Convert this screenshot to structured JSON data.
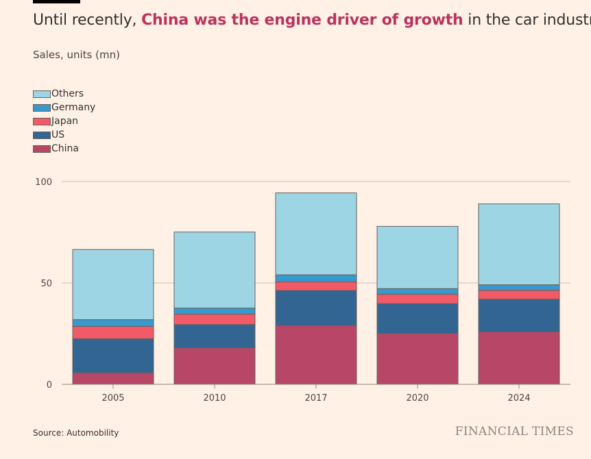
{
  "title": {
    "before": "Until recently, ",
    "highlight": "China was the engine driver of growth",
    "after": " in the car industry"
  },
  "subtitle": "Sales, units (mn)",
  "source": "Source: Automobility",
  "brand": "FINANCIAL TIMES",
  "colors": {
    "background": "#fff1e5",
    "highlight": "#b8345f"
  },
  "chart_data": {
    "type": "bar",
    "stacked": true,
    "categories": [
      "2005",
      "2010",
      "2017",
      "2020",
      "2024"
    ],
    "series": [
      {
        "name": "China",
        "color": "#b84767",
        "values": [
          5.7,
          18.0,
          29.0,
          25.1,
          25.9
        ]
      },
      {
        "name": "US",
        "color": "#336593",
        "values": [
          16.8,
          11.5,
          17.3,
          14.7,
          16.1
        ]
      },
      {
        "name": "Japan",
        "color": "#f25a67",
        "values": [
          6.1,
          5.1,
          4.2,
          4.6,
          4.4
        ]
      },
      {
        "name": "Germany",
        "color": "#3a99cc",
        "values": [
          3.3,
          3.0,
          3.5,
          2.8,
          2.7
        ]
      },
      {
        "name": "Others",
        "color": "#9dd5e4",
        "values": [
          34.6,
          37.5,
          40.4,
          30.7,
          39.9
        ]
      }
    ],
    "legend_order": [
      "Others",
      "Germany",
      "Japan",
      "US",
      "China"
    ],
    "ylim": [
      0,
      100
    ],
    "yticks": [
      "0",
      "50",
      "100"
    ],
    "grid": true,
    "legend_placement": "top-left"
  }
}
